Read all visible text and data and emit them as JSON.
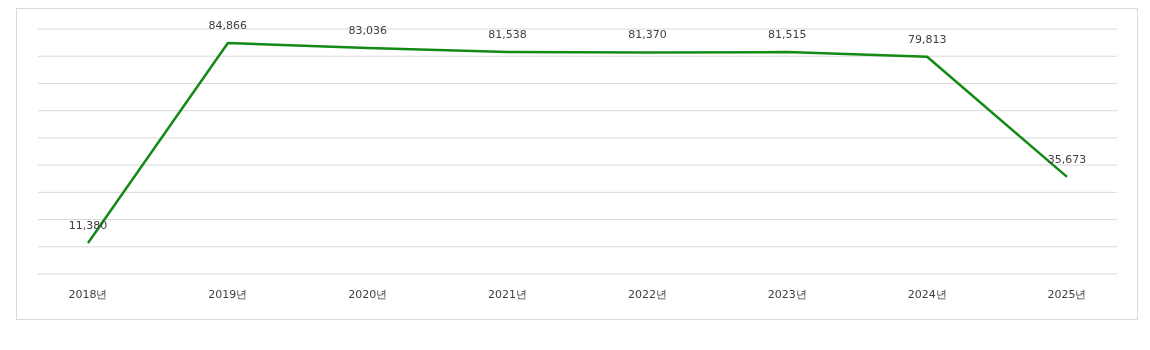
{
  "chart_data": {
    "type": "line",
    "categories": [
      "2018년",
      "2019년",
      "2020년",
      "2021년",
      "2022년",
      "2023년",
      "2024년",
      "2025년"
    ],
    "series": [
      {
        "color": "#138a13",
        "values": [
          11380,
          84866,
          83036,
          81538,
          81370,
          81515,
          79813,
          35673
        ],
        "value_labels": [
          "11,380",
          "84,866",
          "83,036",
          "81,538",
          "81,370",
          "81,515",
          "79,813",
          "35,673"
        ]
      }
    ],
    "ylim": [
      0,
      90000
    ],
    "yticks": [
      {
        "value": 0,
        "label": null
      },
      {
        "value": 10000,
        "label": null
      },
      {
        "value": 20000,
        "label": null
      },
      {
        "value": 30000,
        "label": null
      },
      {
        "value": 40000,
        "label": null
      },
      {
        "value": 50000,
        "label": null
      },
      {
        "value": 60000,
        "label": null
      },
      {
        "value": 70000,
        "label": null
      },
      {
        "value": 80000,
        "label": null
      },
      {
        "value": 90000,
        "label": null
      }
    ],
    "grid": "y",
    "tick_labels": "x",
    "marker": "none",
    "line_style": "solid",
    "legend": false
  }
}
